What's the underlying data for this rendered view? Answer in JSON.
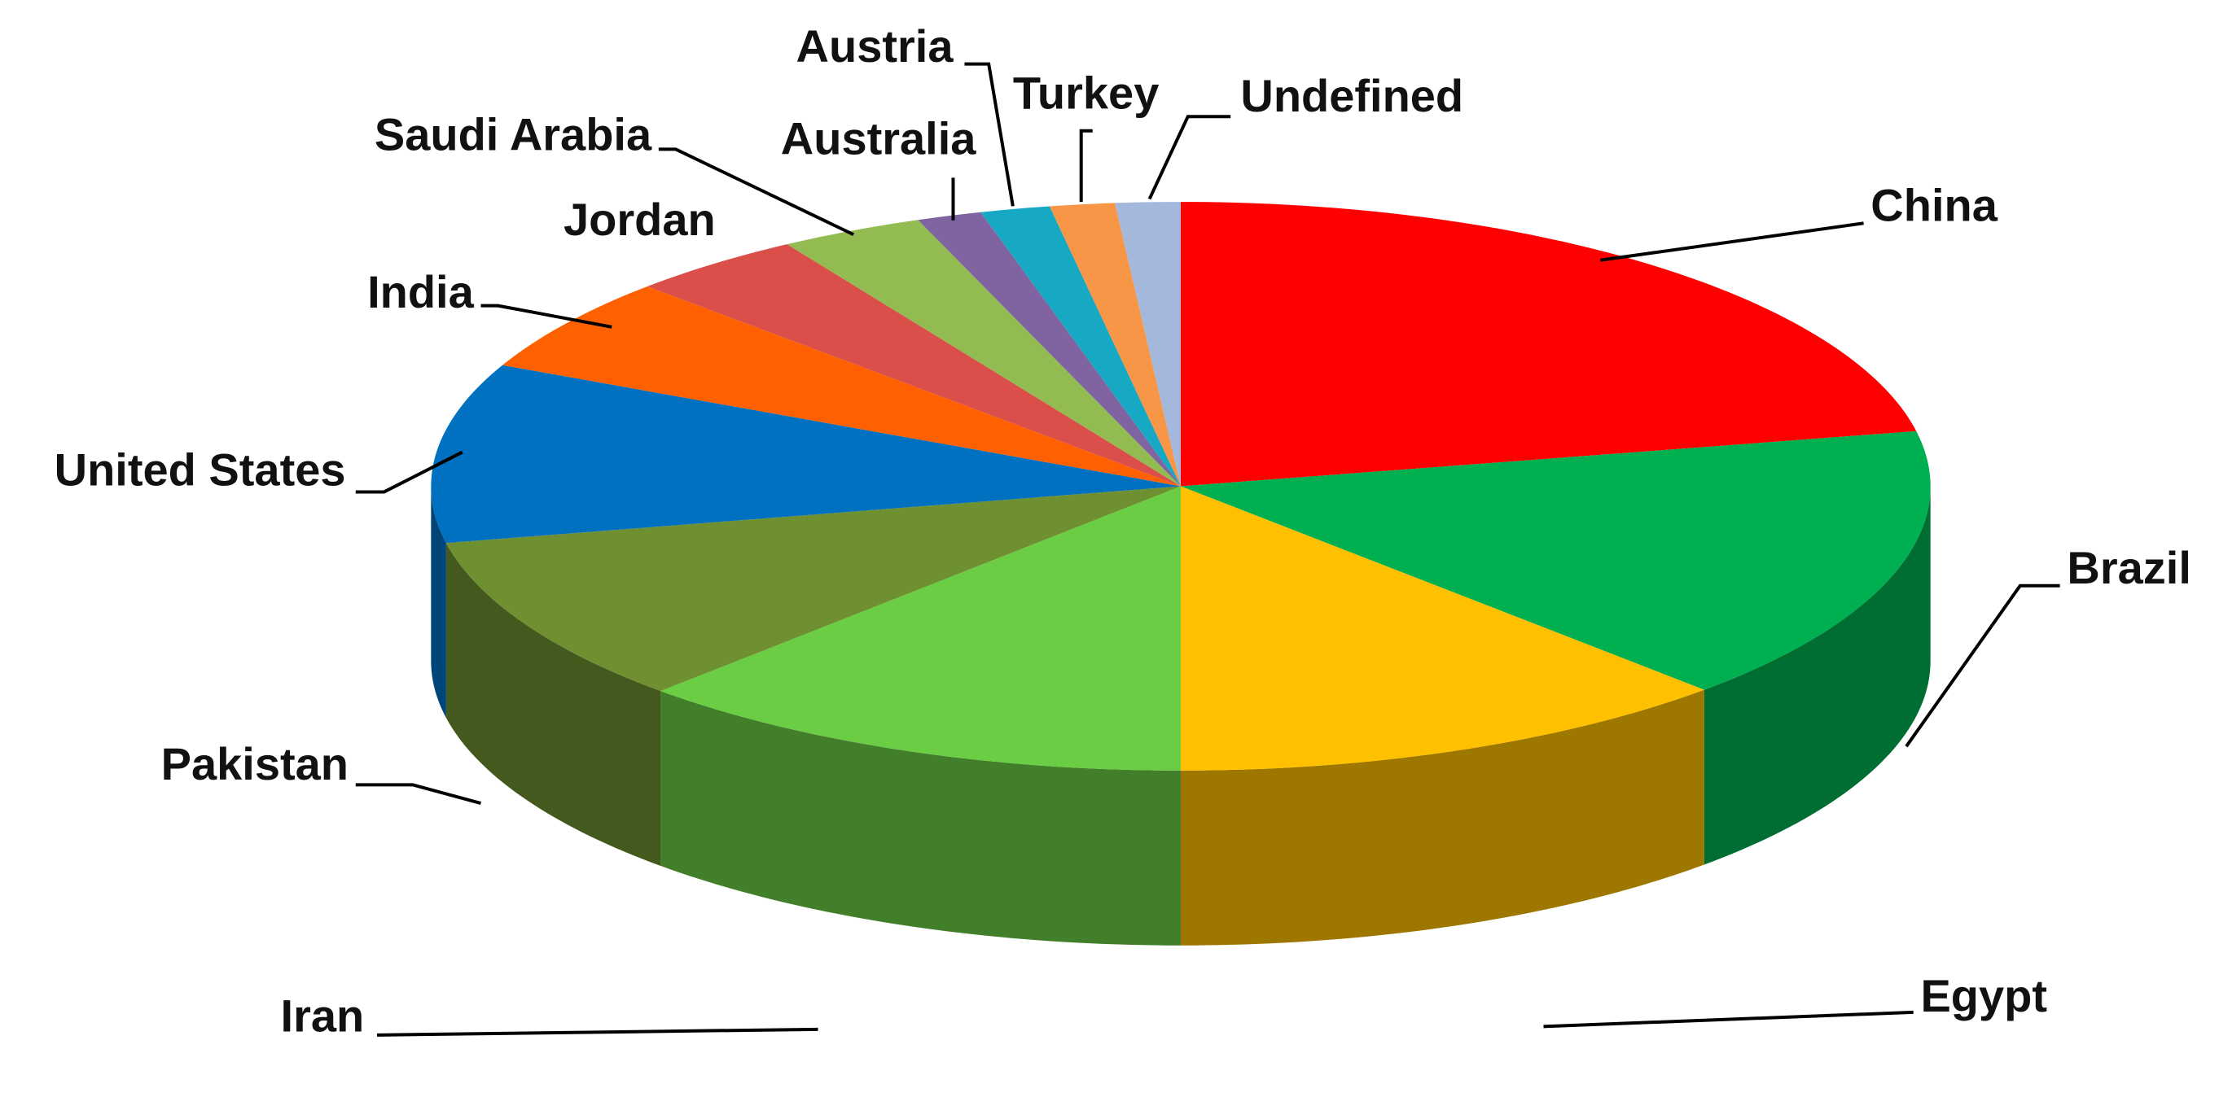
{
  "chart_data": {
    "type": "pie",
    "categories": [
      "China",
      "Brazil",
      "Egypt",
      "Iran",
      "Pakistan",
      "United States",
      "India",
      "Jordan",
      "Saudi Arabia",
      "Australia",
      "Austria",
      "Turkey",
      "Undefined"
    ],
    "values": [
      21.9,
      15.8,
      12.3,
      12.2,
      9.6,
      10.2,
      5.4,
      3.8,
      3.1,
      1.4,
      1.5,
      1.4,
      1.4
    ],
    "colors": [
      "#ff0000",
      "#00b050",
      "#ffc000",
      "#6acd44",
      "#6e9030",
      "#0070c0",
      "#ff6000",
      "#da4f49",
      "#92bb52",
      "#8064a2",
      "#17a8c4",
      "#f79646",
      "#a4b8dc"
    ]
  }
}
